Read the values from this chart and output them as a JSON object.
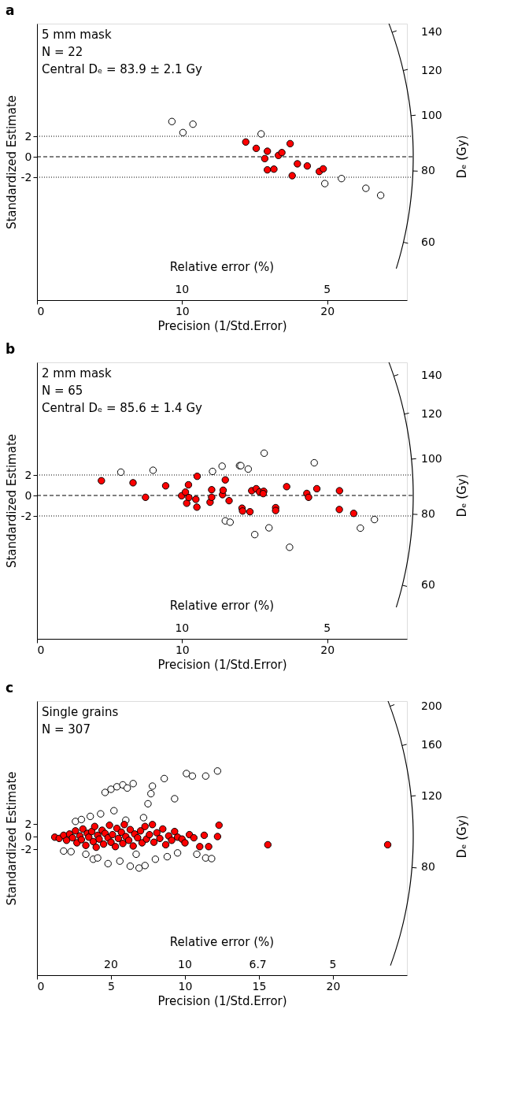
{
  "chart_data": [
    {
      "type": "scatter",
      "title": "a",
      "ylabel": "Standardized Estimate",
      "xlabel": "Precision (1/Std.Error)",
      "y2label": "Dₑ (Gy)",
      "x2label": "Relative error (%)",
      "annotations": [
        "5 mm mask",
        "N = 22",
        "Central Dₑ = 83.9 ± 2.1 Gy",
        "10",
        "5"
      ],
      "xlim": [
        0,
        25.5
      ],
      "xticks": [
        0,
        10,
        20
      ],
      "ylim": [
        -14,
        13
      ],
      "yticks": [
        -2,
        0,
        2
      ],
      "y2lim": [
        47.5,
        145
      ],
      "y2ticks": [
        60,
        80,
        100,
        120,
        140
      ],
      "log": "y2",
      "marker": "circle",
      "grid": false,
      "ref_lines": [
        {
          "axis": "y",
          "value": 2,
          "line_style": "dotted"
        },
        {
          "axis": "y",
          "value": 0,
          "line_style": "dashed"
        },
        {
          "axis": "y",
          "value": -2,
          "line_style": "dotted"
        }
      ],
      "series": [
        {
          "color": "#ff0000",
          "x": [
            14.39,
            15.11,
            15.88,
            15.7,
            15.88,
            16.33,
            16.64,
            16.88,
            17.45,
            17.59,
            17.95,
            18.63,
            19.46,
            19.73
          ],
          "values": [
            1.44,
            0.82,
            0.54,
            -0.18,
            -1.28,
            -1.21,
            0.13,
            0.41,
            1.28,
            -1.85,
            -0.69,
            -0.9,
            -1.44,
            -1.18
          ]
        },
        {
          "color": "#ffffff",
          "x": [
            9.3,
            10.06,
            10.75,
            15.45,
            19.84,
            20.99,
            22.67,
            23.69
          ],
          "values": [
            3.44,
            2.36,
            3.18,
            2.23,
            -2.62,
            -2.13,
            -3.08,
            -3.77
          ]
        }
      ]
    },
    {
      "type": "scatter",
      "title": "b",
      "ylabel": "Standardized Estimate",
      "xlabel": "Precision (1/Std.Error)",
      "y2label": "Dₑ (Gy)",
      "x2label": "Relative error (%)",
      "annotations": [
        "2 mm mask",
        "N = 65",
        "Central Dₑ = 85.6 ± 1.4 Gy",
        "10",
        "5"
      ],
      "xlim": [
        0,
        25.5
      ],
      "xticks": [
        0,
        10,
        20
      ],
      "ylim": [
        -14,
        13
      ],
      "yticks": [
        -2,
        0,
        2
      ],
      "y2lim": [
        48.3,
        148
      ],
      "y2ticks": [
        60,
        80,
        100,
        120,
        140
      ],
      "log": "y2",
      "marker": "circle",
      "grid": false,
      "ref_lines": [
        {
          "axis": "y",
          "value": 2,
          "line_style": "dotted"
        },
        {
          "axis": "y",
          "value": 0,
          "line_style": "dashed"
        },
        {
          "axis": "y",
          "value": -2,
          "line_style": "dotted"
        }
      ],
      "series": [
        {
          "color": "#ff0000",
          "x": [
            4.44,
            6.62,
            7.48,
            8.87,
            9.97,
            10.23,
            10.32,
            10.44,
            10.47,
            10.95,
            11.02,
            11.04,
            11.93,
            12.04,
            12.04,
            12.79,
            12.83,
            12.98,
            13.24,
            14.13,
            14.17,
            14.68,
            14.8,
            15.11,
            15.34,
            15.63,
            15.59,
            16.45,
            16.45,
            17.21,
            18.6,
            18.72,
            19.29,
            20.85,
            20.84,
            21.83
          ],
          "values": [
            1.44,
            1.24,
            -0.18,
            0.94,
            -0.03,
            0.33,
            -0.76,
            1.04,
            -0.2,
            -0.38,
            -1.14,
            1.87,
            -0.66,
            0.56,
            -0.18,
            0.08,
            0.51,
            1.52,
            -0.51,
            -1.24,
            -1.52,
            -1.59,
            0.46,
            0.66,
            0.35,
            0.41,
            0.18,
            -1.19,
            -1.47,
            0.86,
            0.2,
            -0.18,
            0.66,
            0.46,
            -1.37,
            -1.75
          ]
        },
        {
          "color": "#ffffff",
          "x": [
            5.78,
            8.0,
            12.1,
            12.76,
            13.96,
            14.05,
            14.56,
            15.66,
            19.11,
            12.98,
            13.31,
            15.01,
            15.99,
            17.41,
            22.29,
            23.26
          ],
          "values": [
            2.28,
            2.46,
            2.35,
            2.86,
            2.91,
            2.91,
            2.58,
            4.13,
            3.19,
            -2.48,
            -2.61,
            -3.82,
            -3.16,
            -5.06,
            -3.19,
            -2.35
          ]
        }
      ]
    },
    {
      "type": "scatter",
      "title": "c",
      "ylabel": "Standardized Estimate",
      "xlabel": "Precision (1/Std.Error)",
      "y2label": "Dₑ (Gy)",
      "x2label": "Relative error (%)",
      "annotations": [
        "Single grains",
        "N = 307",
        "20",
        "10",
        "6.7",
        "5"
      ],
      "xlim": [
        0,
        25
      ],
      "xticks": [
        0,
        5,
        10,
        15,
        20
      ],
      "ylim": [
        -22,
        21.5
      ],
      "yticks": [
        -2,
        0,
        2
      ],
      "y2lim": [
        43.4,
        206
      ],
      "y2ticks": [
        80,
        120,
        160,
        200
      ],
      "log": "y2",
      "marker": "circle",
      "grid": false,
      "series": [
        {
          "color": "#ffffff",
          "x": [
            1.8,
            2.3,
            2.6,
            3.0,
            3.3,
            3.6,
            3.8,
            4.1,
            4.3,
            4.6,
            4.8,
            5.0,
            5.2,
            5.4,
            5.6,
            5.8,
            6.0,
            6.1,
            6.3,
            6.5,
            6.7,
            6.9,
            7.2,
            7.3,
            7.5,
            7.7,
            7.8,
            8.0,
            8.6,
            8.8,
            9.3,
            9.5,
            10.1,
            10.5,
            10.8,
            11.4,
            11.4,
            11.8,
            12.2
          ],
          "values": [
            -2.3,
            -2.4,
            2.4,
            2.7,
            -2.8,
            3.2,
            -3.6,
            -3.4,
            3.6,
            7.0,
            -4.3,
            7.5,
            4.1,
            7.9,
            -3.9,
            8.2,
            2.6,
            7.7,
            -4.7,
            8.4,
            -2.8,
            -5.0,
            3.0,
            -4.6,
            5.2,
            6.8,
            8.0,
            -3.6,
            9.2,
            -3.2,
            6.0,
            -2.6,
            10.0,
            9.6,
            -2.8,
            -3.4,
            9.6,
            -3.5,
            10.4
          ]
        },
        {
          "color": "#ff0000",
          "x": [
            1.2,
            1.5,
            1.8,
            2.0,
            2.2,
            2.4,
            2.6,
            2.7,
            2.9,
            3.0,
            3.1,
            3.3,
            3.4,
            3.5,
            3.7,
            3.8,
            3.9,
            4.0,
            4.1,
            4.2,
            4.4,
            4.5,
            4.6,
            4.8,
            4.9,
            5.0,
            5.1,
            5.3,
            5.4,
            5.5,
            5.7,
            5.8,
            5.9,
            6.0,
            6.2,
            6.3,
            6.5,
            6.6,
            6.8,
            7.0,
            7.1,
            7.3,
            7.4,
            7.6,
            7.8,
            7.9,
            8.1,
            8.3,
            8.5,
            8.7,
            8.9,
            9.1,
            9.3,
            9.5,
            9.8,
            10.0,
            10.3,
            10.6,
            11.0,
            11.3,
            11.6,
            12.2,
            12.3,
            15.6,
            23.7
          ],
          "values": [
            -0.1,
            -0.3,
            0.2,
            -0.6,
            0.4,
            -0.2,
            0.9,
            -1.0,
            0.1,
            -0.5,
            1.2,
            -1.4,
            0.5,
            -0.1,
            0.8,
            -0.8,
            1.6,
            -1.7,
            0.2,
            -0.4,
            1.0,
            -1.2,
            0.5,
            -0.2,
            1.8,
            -0.9,
            0.3,
            -1.6,
            1.3,
            -0.3,
            0.7,
            -1.1,
            1.9,
            0.0,
            -0.6,
            1.1,
            -1.5,
            0.4,
            -0.2,
            0.9,
            -1.0,
            1.6,
            -0.4,
            0.3,
            1.9,
            -0.9,
            0.6,
            -0.3,
            1.2,
            -1.3,
            0.1,
            -0.6,
            0.8,
            -0.1,
            -0.4,
            -1.0,
            0.3,
            -0.2,
            -1.6,
            0.2,
            -1.6,
            0.0,
            1.8,
            -1.3,
            -1.3
          ]
        }
      ]
    }
  ]
}
